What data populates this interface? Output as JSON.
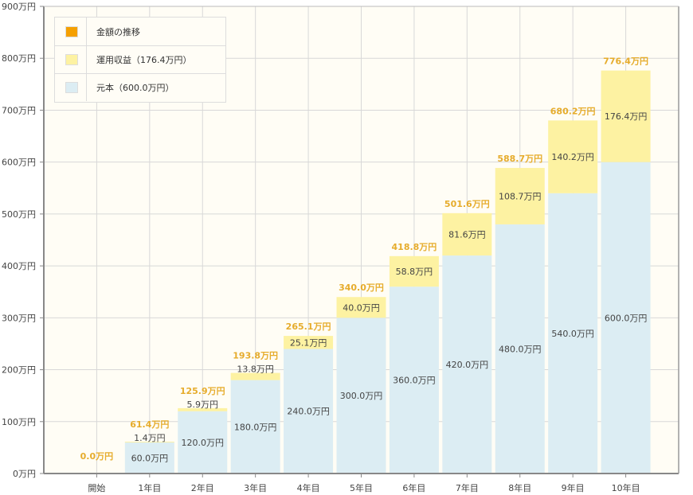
{
  "chart_data": {
    "type": "bar",
    "stacked": true,
    "categories": [
      "開始",
      "1年目",
      "2年目",
      "3年目",
      "4年目",
      "5年目",
      "6年目",
      "7年目",
      "8年目",
      "9年目",
      "10年目"
    ],
    "series": [
      {
        "name": "元本（600.0万円）",
        "color": "#dcedf3",
        "values": [
          0,
          60.0,
          120.0,
          180.0,
          240.0,
          300.0,
          360.0,
          420.0,
          480.0,
          540.0,
          600.0
        ],
        "labels": [
          "",
          "60.0万円",
          "120.0万円",
          "180.0万円",
          "240.0万円",
          "300.0万円",
          "360.0万円",
          "420.0万円",
          "480.0万円",
          "540.0万円",
          "600.0万円"
        ]
      },
      {
        "name": "運用収益（176.4万円）",
        "color": "#fdf2a2",
        "values": [
          0,
          1.4,
          5.9,
          13.8,
          25.1,
          40.0,
          58.8,
          81.6,
          108.7,
          140.2,
          176.4
        ],
        "labels": [
          "",
          "1.4万円",
          "5.9万円",
          "13.8万円",
          "25.1万円",
          "40.0万円",
          "58.8万円",
          "81.6万円",
          "108.7万円",
          "140.2万円",
          "176.4万円"
        ]
      }
    ],
    "totals": {
      "name": "金額の推移",
      "color": "#f5a000",
      "label_color": "#e6ac2c",
      "values": [
        0.0,
        61.4,
        125.9,
        193.8,
        265.1,
        340.0,
        418.8,
        501.6,
        588.7,
        680.2,
        776.4
      ],
      "labels": [
        "0.0万円",
        "61.4万円",
        "125.9万円",
        "193.8万円",
        "265.1万円",
        "340.0万円",
        "418.8万円",
        "501.6万円",
        "588.7万円",
        "680.2万円",
        "776.4万円"
      ]
    },
    "yticks": [
      "0万円",
      "100万円",
      "200万円",
      "300万円",
      "400万円",
      "500万円",
      "600万円",
      "700万円",
      "800万円",
      "900万円"
    ],
    "ylim": [
      0,
      900
    ],
    "grid": true,
    "legend": "top-left",
    "background": "#fffdf5"
  }
}
